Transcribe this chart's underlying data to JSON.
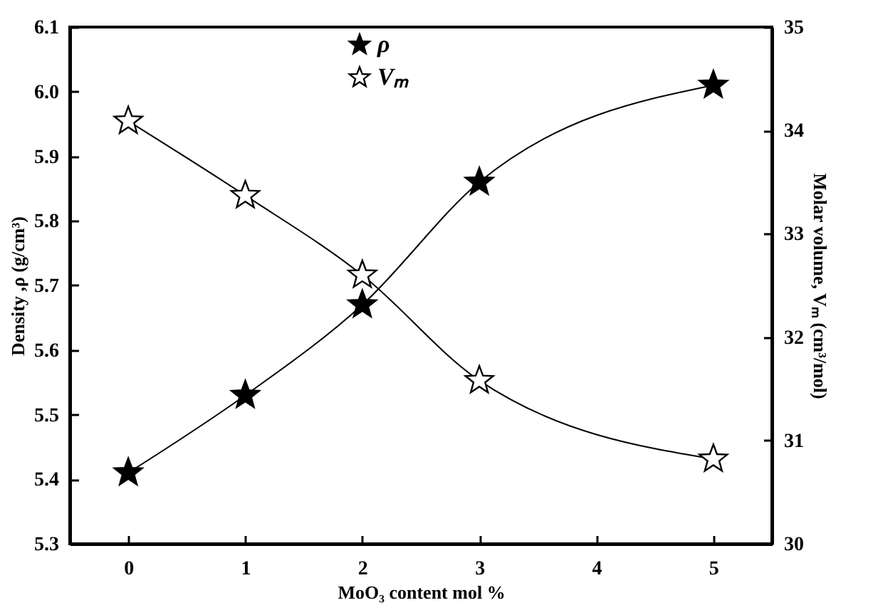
{
  "chart_data": {
    "type": "line",
    "xlabel": "MoO₃ content mol %",
    "ylabel": "Density ,ρ (g/cm³)",
    "y2label": "Molar volume, Vₘ (cm³/mol)",
    "x": [
      0,
      1,
      2,
      3,
      5
    ],
    "series": [
      {
        "name": "ρ",
        "color": "#000000",
        "values": [
          5.41,
          5.53,
          5.67,
          5.86,
          6.01
        ]
      },
      {
        "name": "Vₘ",
        "color": "#ffffff",
        "axis": "y2",
        "values": [
          34.09,
          33.37,
          32.6,
          31.58,
          30.82
        ]
      }
    ],
    "xlim": [
      -0.5,
      5.5
    ],
    "xticks": [
      0,
      1,
      2,
      3,
      4,
      5
    ],
    "ylim": [
      5.3,
      6.1
    ],
    "yticks": [
      5.3,
      5.4,
      5.5,
      5.6,
      5.7,
      5.8,
      5.9,
      {
        "value": 6,
        "label": "6.0"
      },
      6.1
    ],
    "y2lim": [
      30,
      35
    ],
    "y2ticks": [
      30,
      31,
      32,
      33,
      34,
      35
    ],
    "marker": "star",
    "legend": "top",
    "grid": false
  }
}
